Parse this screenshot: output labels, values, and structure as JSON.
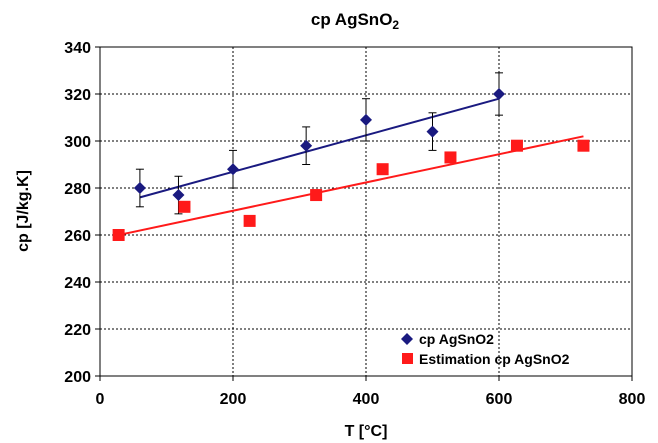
{
  "chart_data": {
    "type": "scatter",
    "title_main": "cp AgSnO",
    "title_sub": "2",
    "xlabel": "T [°C]",
    "ylabel": "cp [J/kg.K]",
    "xlim": [
      0,
      800
    ],
    "ylim": [
      200,
      340
    ],
    "xticks": [
      0,
      200,
      400,
      600,
      800
    ],
    "yticks": [
      200,
      220,
      240,
      260,
      280,
      300,
      320,
      340
    ],
    "grid": true,
    "legend_position": "bottom-right",
    "series": [
      {
        "name": "cp AgSnO2",
        "marker": "diamond",
        "color": "#1a1a80",
        "x": [
          60,
          118,
          200,
          310,
          400,
          500,
          600
        ],
        "y": [
          280,
          277,
          288,
          298,
          309,
          304,
          320
        ],
        "error": [
          8,
          8,
          8,
          8,
          9,
          8,
          9
        ],
        "trendline": {
          "x": [
            60,
            600
          ],
          "y": [
            276,
            318
          ]
        }
      },
      {
        "name": "Estimation cp AgSnO2",
        "marker": "square",
        "color": "#ff1a1a",
        "x": [
          28,
          127,
          225,
          325,
          425,
          527,
          627,
          727
        ],
        "y": [
          260,
          272,
          266,
          277,
          288,
          293,
          298,
          298
        ],
        "trendline": {
          "x": [
            28,
            727
          ],
          "y": [
            260,
            302
          ]
        }
      }
    ]
  }
}
